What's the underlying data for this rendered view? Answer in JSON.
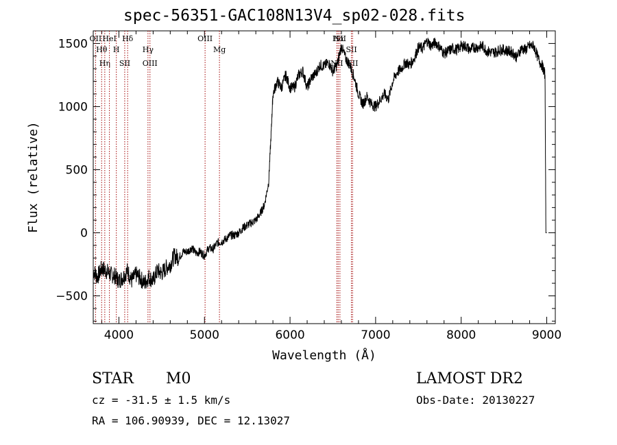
{
  "title": "spec-56351-GAC108N13V4_sp02-028.fits",
  "footer": {
    "class": "STAR",
    "subclass": "M0",
    "survey": "LAMOST DR2",
    "cz": "cz = -31.5 ± 1.5 km/s",
    "obs_date": "Obs-Date: 20130227",
    "coords": "RA = 106.90939, DEC =  12.13027"
  },
  "chart_data": {
    "type": "line",
    "xlabel": "Wavelength (Å)",
    "ylabel": "Flux (relative)",
    "xlim": [
      3700,
      9100
    ],
    "ylim": [
      -720,
      1600
    ],
    "xticks": [
      4000,
      5000,
      6000,
      7000,
      8000,
      9000
    ],
    "yticks": [
      -500,
      0,
      500,
      1000,
      1500
    ],
    "series": [
      {
        "x": [
          3700,
          3750,
          3800,
          3850,
          3900,
          3950,
          4000,
          4050,
          4100,
          4150,
          4200,
          4250,
          4300,
          4350,
          4400,
          4450,
          4500,
          4550,
          4600,
          4650,
          4700,
          4750,
          4800,
          4850,
          4900,
          4950,
          5000,
          5050,
          5100,
          5150,
          5200,
          5250,
          5300,
          5350,
          5400,
          5450,
          5500,
          5550,
          5600,
          5650,
          5700,
          5750,
          5780,
          5800,
          5850,
          5900,
          5950,
          6000,
          6050,
          6100,
          6150,
          6200,
          6250,
          6300,
          6350,
          6400,
          6450,
          6500,
          6550,
          6600,
          6650,
          6700,
          6750,
          6800,
          6850,
          6900,
          6950,
          7000,
          7050,
          7100,
          7150,
          7200,
          7250,
          7300,
          7350,
          7400,
          7450,
          7500,
          7550,
          7600,
          7650,
          7700,
          7750,
          7800,
          7850,
          7900,
          7950,
          8000,
          8050,
          8100,
          8150,
          8200,
          8250,
          8300,
          8350,
          8400,
          8450,
          8500,
          8550,
          8600,
          8650,
          8700,
          8750,
          8800,
          8850,
          8900,
          8950,
          8980,
          8990,
          9000
        ],
        "y": [
          -300,
          -350,
          -280,
          -300,
          -330,
          -340,
          -380,
          -350,
          -300,
          -380,
          -330,
          -360,
          -400,
          -350,
          -380,
          -300,
          -320,
          -280,
          -250,
          -180,
          -200,
          -150,
          -150,
          -120,
          -160,
          -150,
          -180,
          -120,
          -130,
          -80,
          -70,
          -50,
          -20,
          -20,
          0,
          40,
          60,
          80,
          100,
          150,
          220,
          400,
          800,
          1100,
          1200,
          1150,
          1250,
          1150,
          1150,
          1250,
          1280,
          1150,
          1230,
          1260,
          1330,
          1320,
          1350,
          1280,
          1330,
          1480,
          1380,
          1330,
          1230,
          1100,
          1020,
          1080,
          1020,
          1000,
          1050,
          1100,
          1060,
          1200,
          1270,
          1300,
          1350,
          1330,
          1380,
          1470,
          1460,
          1520,
          1480,
          1510,
          1470,
          1420,
          1440,
          1460,
          1450,
          1480,
          1480,
          1450,
          1470,
          1470,
          1480,
          1440,
          1430,
          1430,
          1450,
          1450,
          1440,
          1430,
          1390,
          1460,
          1450,
          1480,
          1480,
          1380,
          1320,
          1250,
          0,
          0
        ]
      }
    ],
    "lines": [
      {
        "wl": 3727,
        "label": "OII"
      },
      {
        "wl": 3798,
        "label": "Hθ"
      },
      {
        "wl": 3835,
        "label": "Hη"
      },
      {
        "wl": 3889,
        "label": "HeI"
      },
      {
        "wl": 3970,
        "label": "H"
      },
      {
        "wl": 4068,
        "label": "SII"
      },
      {
        "wl": 4102,
        "label": "Hδ"
      },
      {
        "wl": 4340,
        "label": "Hγ"
      },
      {
        "wl": 4363,
        "label": "OIII"
      },
      {
        "wl": 5007,
        "label": "OIII"
      },
      {
        "wl": 5175,
        "label": "Mg"
      },
      {
        "wl": 6548,
        "label": "NII"
      },
      {
        "wl": 6563,
        "label": "Hα"
      },
      {
        "wl": 6717,
        "label": "SII"
      },
      {
        "wl": 6731,
        "label": "SII"
      },
      {
        "wl": 6583,
        "label": "NII"
      }
    ]
  }
}
